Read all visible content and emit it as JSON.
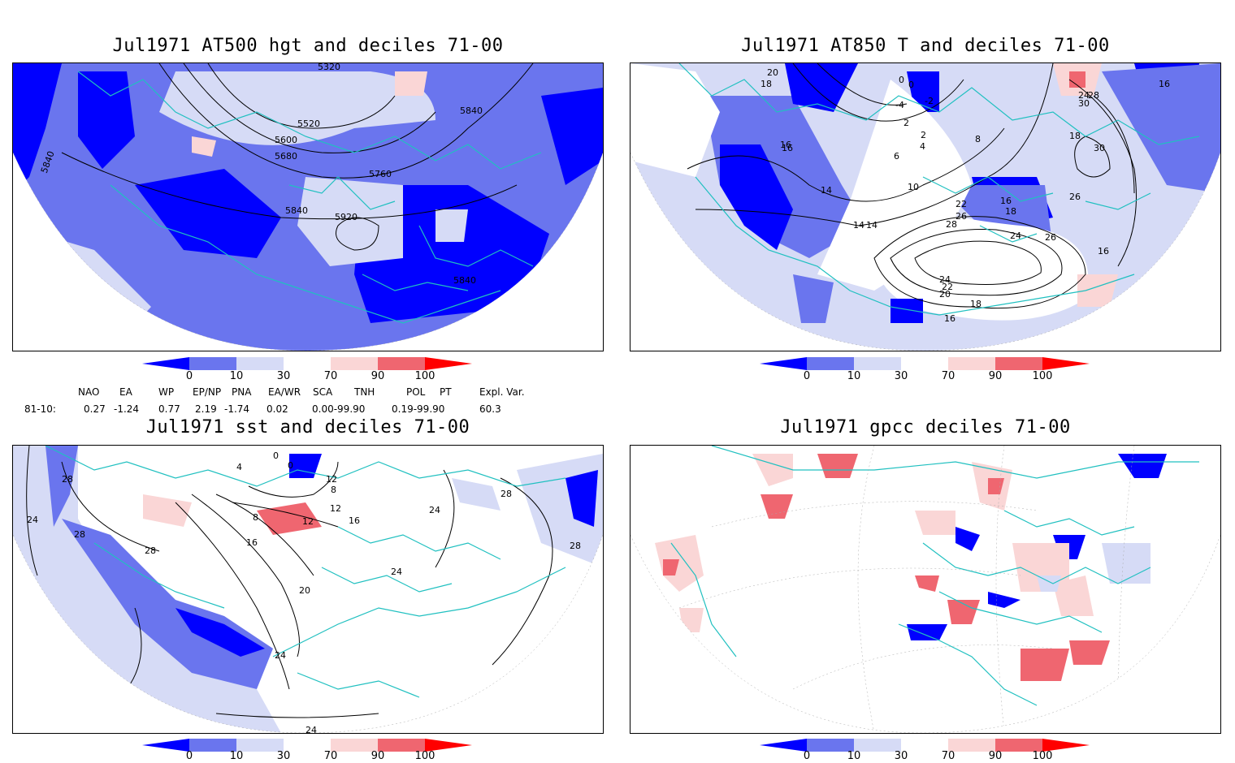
{
  "panels": {
    "p1": {
      "title": "Jul1971 AT500 hgt and deciles 71-00",
      "contour_labels": [
        "5320",
        "5520",
        "5600",
        "5680",
        "5760",
        "5840",
        "5840",
        "5840",
        "5840",
        "5920"
      ]
    },
    "p2": {
      "title": "Jul1971 AT850 T and deciles 71-00",
      "contour_labels": [
        "20",
        "18",
        "16",
        "0",
        "0",
        "-2",
        "-4",
        "2",
        "2",
        "4",
        "6",
        "8",
        "10",
        "14",
        "14",
        "16",
        "16",
        "18",
        "22",
        "26",
        "28",
        "24",
        "26",
        "24",
        "22",
        "20",
        "18",
        "16",
        "16",
        "18",
        "24",
        "28",
        "30",
        "30",
        "26",
        "16",
        "14"
      ]
    },
    "p3": {
      "title": "Jul1971 sst and deciles 71-00",
      "contour_labels": [
        "24",
        "28",
        "28",
        "28",
        "12",
        "8",
        "4",
        "0",
        "0",
        "12",
        "8",
        "12",
        "16",
        "16",
        "20",
        "24",
        "24",
        "24",
        "28",
        "28",
        "24"
      ]
    },
    "p4": {
      "title": "Jul1971 gpcc deciles 71-00"
    }
  },
  "colorbar": {
    "labels": [
      "0",
      "10",
      "30",
      "70",
      "90",
      "100"
    ],
    "colors": [
      "#0000ff",
      "#6a75ee",
      "#d6dbf6",
      "#ffffff",
      "#fad6d6",
      "#ef6670",
      "#ff0000"
    ]
  },
  "indices": {
    "header": [
      "NAO",
      "EA",
      "WP",
      "EP/NP",
      "PNA",
      "EA/WR",
      "SCA",
      "TNH",
      "POL",
      "PT",
      "Expl. Var."
    ],
    "row_label": "81-10:",
    "values": [
      "0.27",
      "-1.24",
      "0.77",
      "2.19",
      "-1.74",
      "0.02",
      "0.00-99.90",
      "",
      "0.19-99.90",
      "",
      "60.3"
    ]
  },
  "colors": {
    "coastline": "#20c0c0",
    "strong_low": "#0000ff",
    "moderate_low": "#6a75ee",
    "weak_low": "#d6dbf6",
    "weak_high": "#fad6d6",
    "moderate_high": "#ef6670"
  }
}
